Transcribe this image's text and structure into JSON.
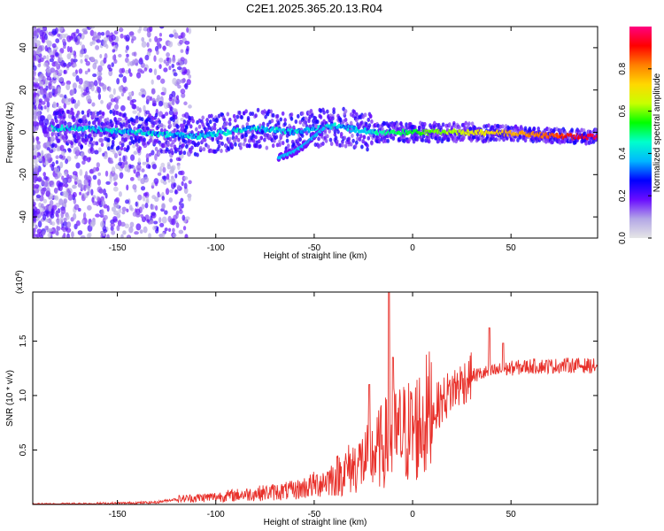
{
  "title": "C2E1.2025.365.20.13.R04",
  "colorbar": {
    "label": "Normalized spectral amplitude",
    "range": [
      0,
      1
    ],
    "ticks": [
      "0.0",
      "0.2",
      "0.4",
      "0.6",
      "0.8"
    ],
    "tick_values": [
      0.0,
      0.2,
      0.4,
      0.6,
      0.8
    ],
    "colors": [
      "#e6e6e6",
      "#b3a7e6",
      "#6a0dff",
      "#0000ff",
      "#00b7ff",
      "#00ffcc",
      "#00ff00",
      "#c8ff00",
      "#ffd800",
      "#ff7f00",
      "#ff0000",
      "#ff0080"
    ]
  },
  "chart_data": [
    {
      "type": "heatmap",
      "name": "spectrogram",
      "xlabel": "Height of straight line (km)",
      "ylabel": "Frequency (Hz)",
      "xlim": [
        -193,
        94
      ],
      "ylim": [
        -50,
        50
      ],
      "xticks": [
        -150,
        -100,
        -50,
        0,
        50
      ],
      "xtick_labels": [
        "-150",
        "-100",
        "-50",
        "0",
        "50"
      ],
      "yticks": [
        -40,
        -20,
        0,
        20,
        40
      ],
      "ytick_labels": [
        "-40",
        "-20",
        "0",
        "20",
        "40"
      ],
      "features": [
        {
          "label": "main band",
          "x": [
            -170,
            -140,
            -110,
            -80,
            -60,
            -40,
            -20,
            0,
            20,
            40,
            60,
            80,
            94
          ],
          "y": [
            2,
            0,
            -2,
            2,
            0,
            3,
            0,
            0,
            0,
            0,
            -1,
            -2,
            -2
          ]
        },
        {
          "label": "lower branch",
          "x": [
            -68,
            -60,
            -55,
            -50,
            -45
          ],
          "y": [
            -12,
            -9,
            -6,
            -2,
            2
          ]
        }
      ]
    },
    {
      "type": "line",
      "name": "snr",
      "xlabel": "Height of straight line (km)",
      "ylabel": "SNR (10 * v/v)",
      "y_multiplier": "(x10",
      "y_multiplier_exp": "4",
      "y_multiplier_close": ")",
      "xlim": [
        -193,
        94
      ],
      "ylim": [
        0,
        1.95
      ],
      "xticks": [
        -150,
        -100,
        -50,
        0,
        50
      ],
      "xtick_labels": [
        "-150",
        "-100",
        "-50",
        "0",
        "50"
      ],
      "yticks": [
        0.5,
        1.0,
        1.5
      ],
      "ytick_labels": [
        "0.5",
        "1.0",
        "1.5"
      ],
      "color": "#e8302a",
      "x": [
        -193,
        -150,
        -130,
        -120,
        -100,
        -80,
        -60,
        -50,
        -40,
        -30,
        -20,
        -15,
        -10,
        -5,
        0,
        10,
        20,
        30,
        40,
        50,
        60,
        70,
        80,
        94
      ],
      "y": [
        0.0,
        0.01,
        0.02,
        0.05,
        0.07,
        0.1,
        0.13,
        0.18,
        0.25,
        0.35,
        0.45,
        0.55,
        0.62,
        0.65,
        0.68,
        0.85,
        1.05,
        1.18,
        1.22,
        1.25,
        1.27,
        1.27,
        1.28,
        1.27
      ],
      "peaks": [
        {
          "x": -12,
          "y": 1.95
        },
        {
          "x": -10,
          "y": 1.35
        },
        {
          "x": -22,
          "y": 1.1
        },
        {
          "x": 39,
          "y": 1.62
        },
        {
          "x": 46,
          "y": 1.48
        }
      ]
    }
  ]
}
